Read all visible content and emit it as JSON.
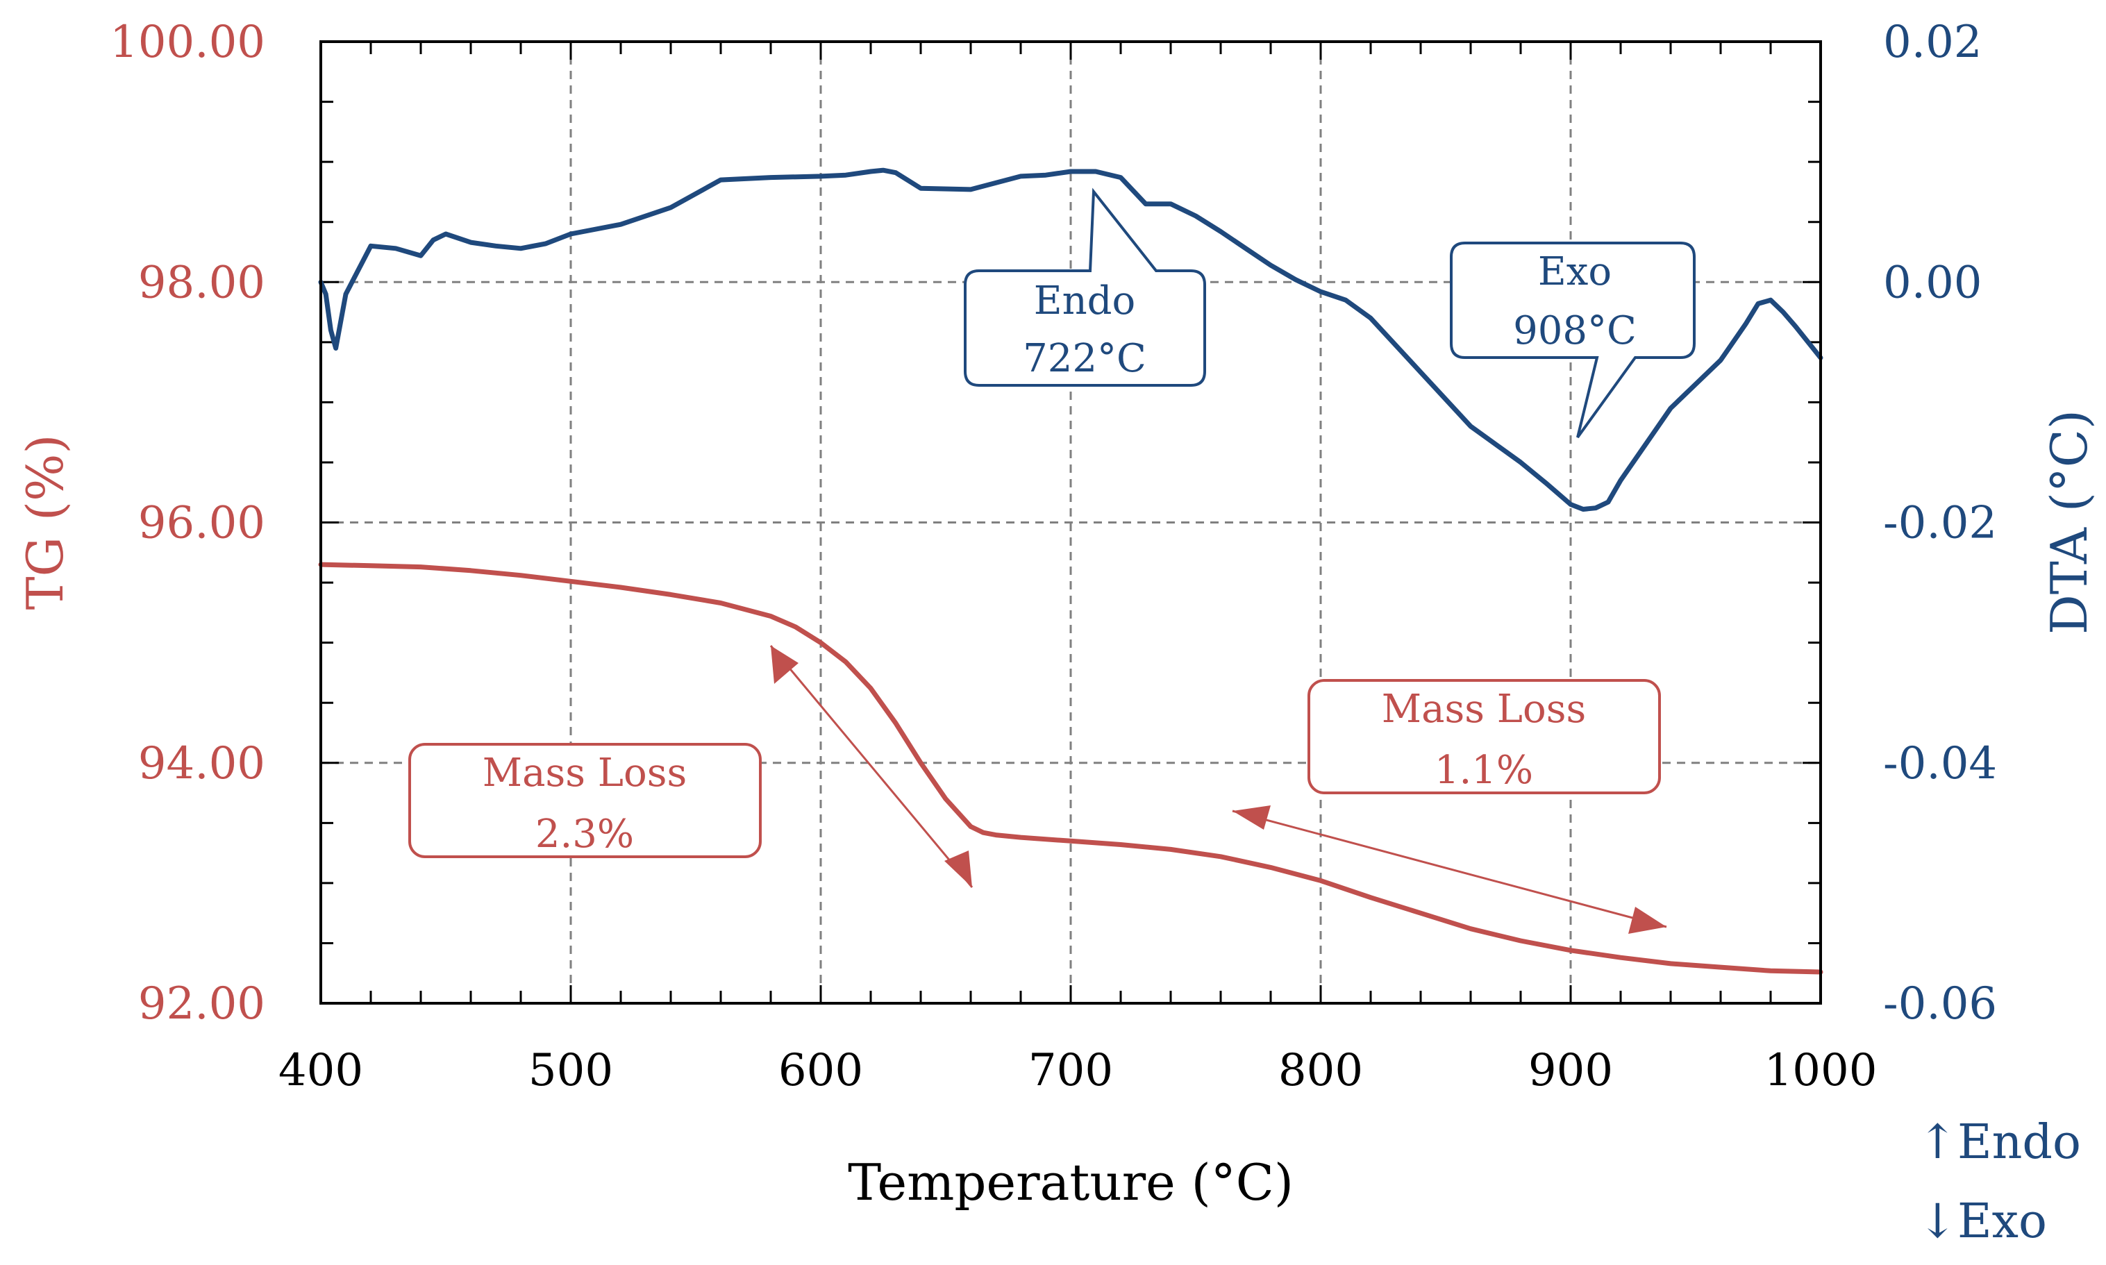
{
  "chart_data": {
    "type": "line",
    "title": "",
    "xlabel": "Temperature (°C)",
    "ylabel_left": "TG (%)",
    "ylabel_right": "DTA (°C)",
    "xlim": [
      400,
      1000
    ],
    "ylim_left": [
      92.0,
      100.0
    ],
    "ylim_right": [
      -0.06,
      0.02
    ],
    "x_ticks": [
      "400",
      "500",
      "600",
      "700",
      "800",
      "900",
      "1000"
    ],
    "y_ticks_left": [
      "92.00",
      "94.00",
      "96.00",
      "98.00",
      "100.00"
    ],
    "y_ticks_right": [
      "-0.06",
      "-0.04",
      "-0.02",
      "0.00",
      "0.02"
    ],
    "grid": true,
    "colors": {
      "tg": "#c0504d",
      "dta": "#1f497d",
      "grid": "#808080"
    },
    "series": [
      {
        "name": "TG",
        "axis": "left",
        "x": [
          400,
          420,
          440,
          460,
          480,
          500,
          520,
          540,
          560,
          580,
          590,
          600,
          610,
          620,
          630,
          640,
          650,
          660,
          665,
          670,
          680,
          700,
          720,
          740,
          760,
          780,
          800,
          820,
          840,
          860,
          880,
          900,
          920,
          940,
          960,
          980,
          1000
        ],
        "values": [
          95.65,
          95.64,
          95.63,
          95.6,
          95.56,
          95.51,
          95.46,
          95.4,
          95.33,
          95.22,
          95.13,
          95.0,
          94.84,
          94.62,
          94.33,
          94.0,
          93.7,
          93.47,
          93.42,
          93.4,
          93.38,
          93.35,
          93.32,
          93.28,
          93.22,
          93.13,
          93.02,
          92.88,
          92.75,
          92.62,
          92.52,
          92.44,
          92.38,
          92.33,
          92.3,
          92.27,
          92.26
        ]
      },
      {
        "name": "DTA",
        "axis": "right",
        "x": [
          400,
          402,
          404,
          406,
          410,
          415,
          420,
          430,
          440,
          445,
          450,
          460,
          470,
          480,
          490,
          500,
          520,
          540,
          560,
          580,
          600,
          610,
          620,
          625,
          630,
          640,
          660,
          680,
          690,
          700,
          710,
          720,
          730,
          740,
          750,
          760,
          770,
          780,
          790,
          800,
          810,
          820,
          840,
          860,
          880,
          890,
          900,
          905,
          910,
          915,
          920,
          930,
          940,
          950,
          960,
          970,
          975,
          980,
          985,
          990,
          995,
          1000
        ],
        "values": [
          0.0,
          -0.001,
          -0.004,
          -0.0055,
          -0.001,
          0.001,
          0.003,
          0.0028,
          0.0022,
          0.0035,
          0.004,
          0.0033,
          0.003,
          0.0028,
          0.0032,
          0.004,
          0.0048,
          0.0062,
          0.0085,
          0.0087,
          0.0088,
          0.0089,
          0.0092,
          0.0093,
          0.0091,
          0.0078,
          0.0077,
          0.0088,
          0.0089,
          0.0092,
          0.0092,
          0.0087,
          0.0065,
          0.0065,
          0.0055,
          0.0042,
          0.0028,
          0.0014,
          0.0002,
          -0.0008,
          -0.0015,
          -0.003,
          -0.0075,
          -0.012,
          -0.015,
          -0.0167,
          -0.0185,
          -0.0189,
          -0.0188,
          -0.0183,
          -0.0165,
          -0.0135,
          -0.0105,
          -0.0085,
          -0.0065,
          -0.0035,
          -0.0018,
          -0.0015,
          -0.0025,
          -0.0037,
          -0.005,
          -0.0063
        ]
      }
    ],
    "annotations": {
      "endo_callout": {
        "line1": "Endo",
        "line2": "722°C"
      },
      "exo_callout": {
        "line1": "Exo",
        "line2": "908°C"
      },
      "mass_loss_1": {
        "line1": "Mass Loss",
        "line2": "2.3%"
      },
      "mass_loss_2": {
        "line1": "Mass Loss",
        "line2": "1.1%"
      }
    },
    "legend": {
      "endo": "↑Endo",
      "exo": "↓Exo"
    }
  }
}
